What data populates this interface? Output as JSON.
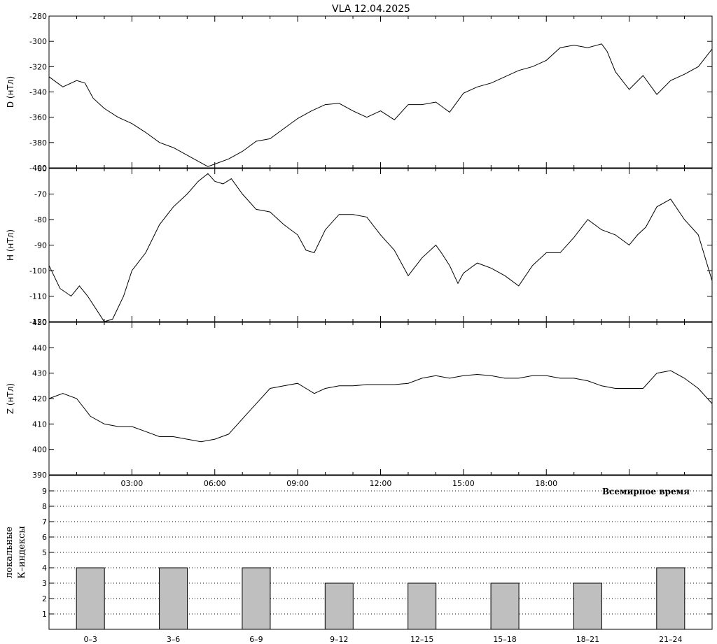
{
  "title": "VLA   12.04.2025",
  "chart_data": [
    {
      "type": "line",
      "panel": "D",
      "ylabel": "D (нТл)",
      "ylim": [
        -400,
        -280
      ],
      "yticks": [
        -400,
        -380,
        -360,
        -340,
        -320,
        -300,
        -280
      ],
      "xlim": [
        0,
        24
      ],
      "x": [
        0,
        0.5,
        1.0,
        1.3,
        1.6,
        2.0,
        2.5,
        3.0,
        3.5,
        4.0,
        4.5,
        5.0,
        5.5,
        5.75,
        6.0,
        6.5,
        7.0,
        7.5,
        8.0,
        8.5,
        9.0,
        9.5,
        10.0,
        10.5,
        11.0,
        11.5,
        12.0,
        12.5,
        13.0,
        13.5,
        14.0,
        14.5,
        14.8,
        15.0,
        15.5,
        16.0,
        16.5,
        17.0,
        17.5,
        18.0,
        18.5,
        19.0,
        19.5,
        20.0,
        20.2,
        20.5,
        21.0,
        21.5,
        22.0,
        22.5,
        23.0,
        23.5,
        24.0
      ],
      "values": [
        -328,
        -336,
        -331,
        -333,
        -345,
        -353,
        -360,
        -365,
        -372,
        -380,
        -384,
        -390,
        -396,
        -399,
        -397,
        -393,
        -387,
        -379,
        -377,
        -369,
        -361,
        -355,
        -350,
        -349,
        -355,
        -360,
        -355,
        -362,
        -350,
        -350,
        -348,
        -356,
        -347,
        -341,
        -336,
        -333,
        -328,
        -323,
        -320,
        -315,
        -305,
        -303,
        -305,
        -302,
        -308,
        -324,
        -338,
        -327,
        -342,
        -331,
        -326,
        -320,
        -306
      ]
    },
    {
      "type": "line",
      "panel": "H",
      "ylabel": "H (нТл)",
      "ylim": [
        -120,
        -60
      ],
      "yticks": [
        -120,
        -110,
        -100,
        -90,
        -80,
        -70,
        -60
      ],
      "xlim": [
        0,
        24
      ],
      "x": [
        0,
        0.4,
        0.8,
        1.1,
        1.4,
        1.7,
        2.0,
        2.3,
        2.7,
        3.0,
        3.5,
        4.0,
        4.5,
        5.0,
        5.4,
        5.75,
        6.0,
        6.3,
        6.6,
        7.0,
        7.5,
        8.0,
        8.5,
        9.0,
        9.3,
        9.6,
        10.0,
        10.5,
        11.0,
        11.5,
        12.0,
        12.5,
        12.8,
        13.0,
        13.5,
        14.0,
        14.2,
        14.5,
        14.8,
        15.0,
        15.5,
        16.0,
        16.5,
        17.0,
        17.5,
        18.0,
        18.5,
        19.0,
        19.5,
        20.0,
        20.5,
        21.0,
        21.3,
        21.6,
        22.0,
        22.5,
        23.0,
        23.5,
        24.0
      ],
      "values": [
        -98,
        -107,
        -110,
        -106,
        -110,
        -115,
        -120,
        -119,
        -110,
        -100,
        -93,
        -82,
        -75,
        -70,
        -65,
        -62,
        -65,
        -66,
        -64,
        -70,
        -76,
        -77,
        -82,
        -86,
        -92,
        -93,
        -84,
        -78,
        -78,
        -79,
        -86,
        -92,
        -98,
        -102,
        -95,
        -90,
        -93,
        -98,
        -105,
        -101,
        -97,
        -99,
        -102,
        -106,
        -98,
        -93,
        -93,
        -87,
        -80,
        -84,
        -86,
        -90,
        -86,
        -83,
        -75,
        -72,
        -80,
        -86,
        -104
      ]
    },
    {
      "type": "line",
      "panel": "Z",
      "ylabel": "Z (нТл)",
      "ylim": [
        390,
        450
      ],
      "yticks": [
        390,
        400,
        410,
        420,
        430,
        440,
        450
      ],
      "xlim": [
        0,
        24
      ],
      "x": [
        0,
        0.5,
        1.0,
        1.5,
        2.0,
        2.5,
        3.0,
        3.5,
        4.0,
        4.5,
        5.0,
        5.5,
        6.0,
        6.5,
        7.0,
        7.5,
        8.0,
        8.5,
        9.0,
        9.3,
        9.6,
        10.0,
        10.5,
        11.0,
        11.5,
        12.0,
        12.5,
        13.0,
        13.5,
        14.0,
        14.5,
        15.0,
        15.5,
        16.0,
        16.5,
        17.0,
        17.5,
        18.0,
        18.5,
        19.0,
        19.5,
        20.0,
        20.5,
        21.0,
        21.5,
        22.0,
        22.5,
        23.0,
        23.5,
        24.0
      ],
      "values": [
        420,
        422,
        420,
        413,
        410,
        409,
        409,
        407,
        405,
        405,
        404,
        403,
        404,
        406,
        412,
        418,
        424,
        425,
        426,
        424,
        422,
        424,
        425,
        425,
        425.5,
        425.5,
        425.5,
        426,
        428,
        429,
        428,
        429,
        429.5,
        429,
        428,
        428,
        429,
        429,
        428,
        428,
        427,
        425,
        424,
        424,
        424,
        430,
        431,
        428,
        424,
        418
      ]
    },
    {
      "type": "bar",
      "panel": "K",
      "ylabel": "локальные\nК–индексы",
      "ylim": [
        0,
        10
      ],
      "yticks": [
        1,
        2,
        3,
        4,
        5,
        6,
        7,
        8,
        9
      ],
      "categories": [
        "0–3",
        "3–6",
        "6–9",
        "9–12",
        "12–15",
        "15–18",
        "18–21",
        "21–24"
      ],
      "values": [
        4,
        4,
        4,
        3,
        3,
        3,
        3,
        4
      ],
      "grid": "dotted-horizontal",
      "bar_color": "#bfbfbf"
    }
  ],
  "x_axis": {
    "tick_labels": [
      "03:00",
      "06:00",
      "09:00",
      "12:00",
      "15:00",
      "18:00"
    ],
    "tick_hours": [
      3,
      6,
      9,
      12,
      15,
      18
    ],
    "label": "Всемирное время"
  }
}
